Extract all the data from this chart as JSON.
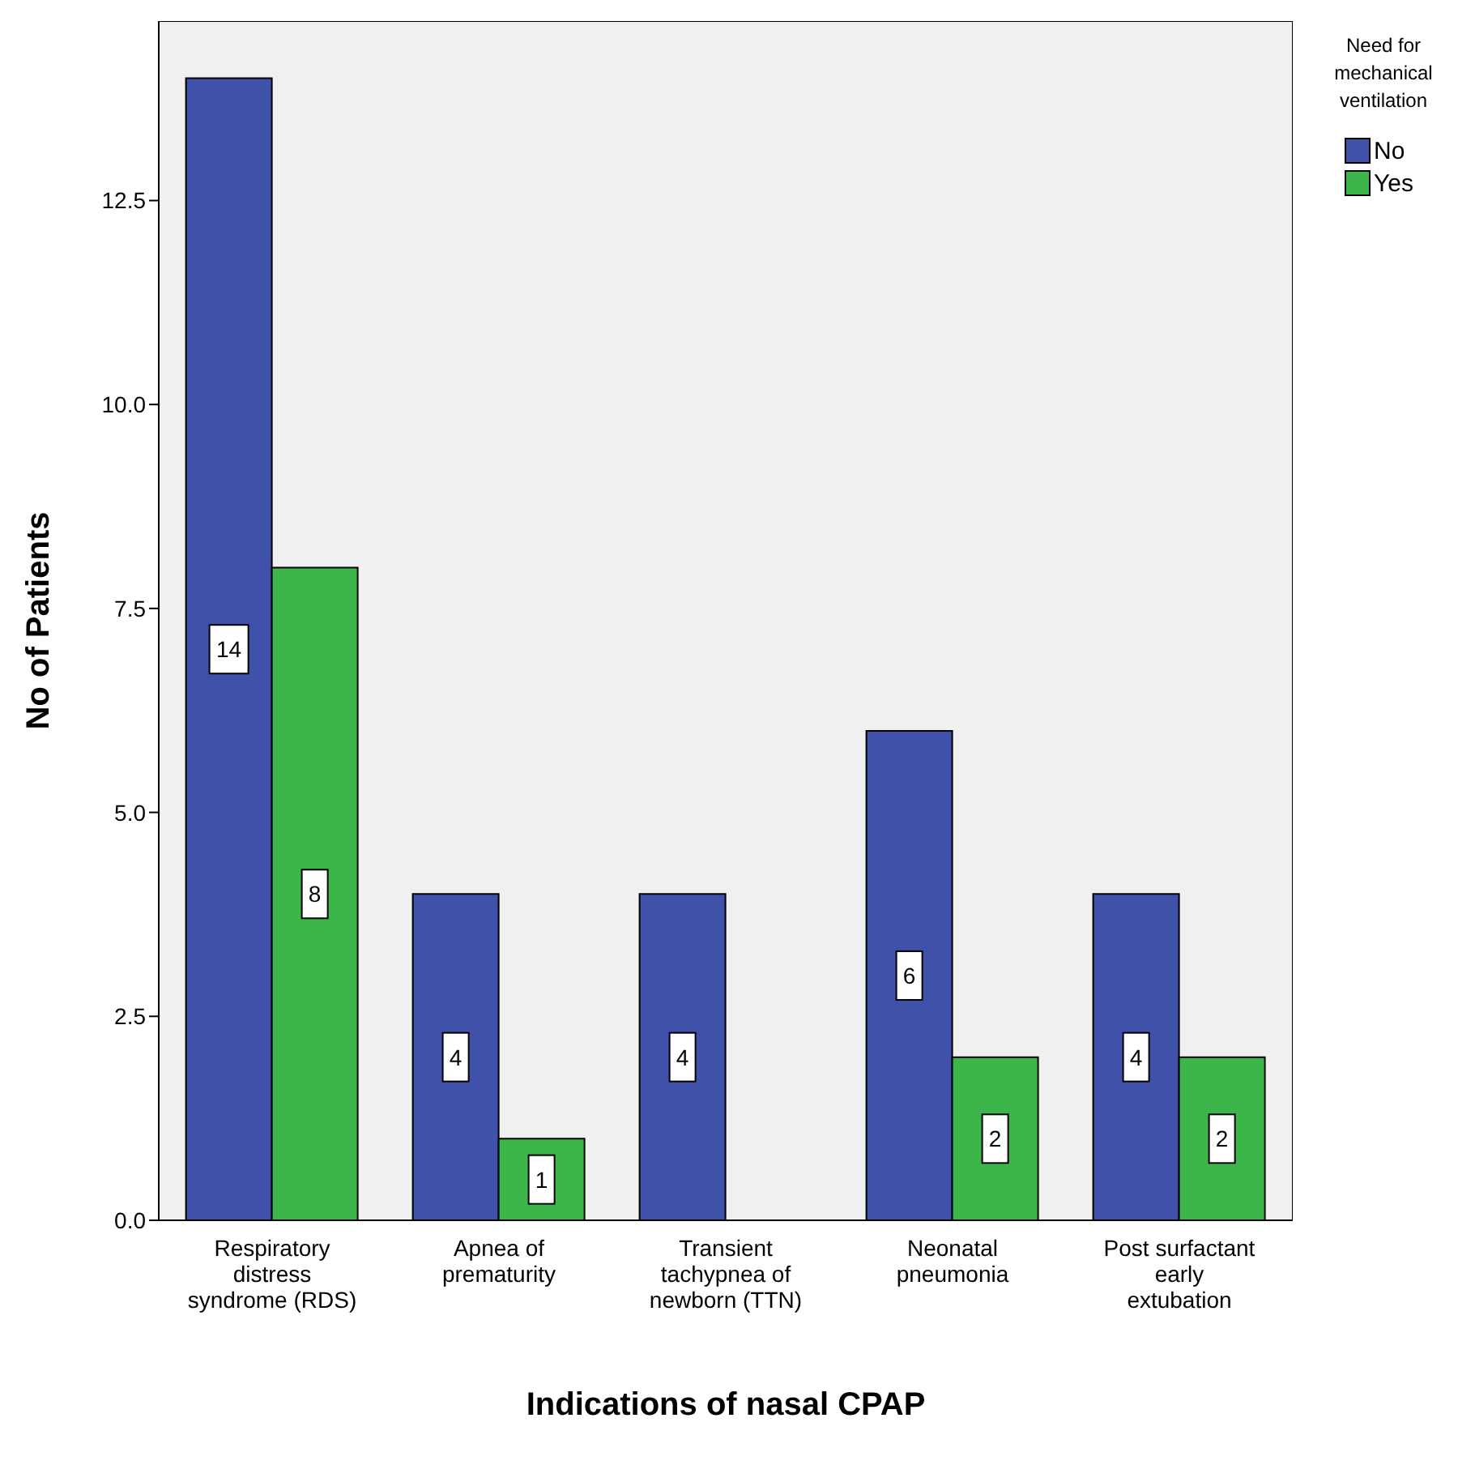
{
  "chart_data": {
    "type": "bar",
    "xlabel": "Indications of nasal CPAP",
    "ylabel": "No of Patients",
    "legend_title": "Need for mechanical ventilation",
    "categories": [
      "Respiratory distress syndrome (RDS)",
      "Apnea of prematurity",
      "Transient tachypnea of newborn (TTN)",
      "Neonatal pneumonia",
      "Post surfactant early extubation"
    ],
    "series": [
      {
        "name": "No",
        "color": "#3f51a8",
        "values": [
          14,
          4,
          4,
          6,
          4
        ]
      },
      {
        "name": "Yes",
        "color": "#3cb54a",
        "values": [
          8,
          1,
          null,
          2,
          2
        ]
      }
    ],
    "ylim": [
      0,
      14.7
    ],
    "yticks": [
      {
        "value": 0,
        "label": "0.0"
      },
      {
        "value": 2.5,
        "label": "2.5"
      },
      {
        "value": 5,
        "label": "5.0"
      },
      {
        "value": 7.5,
        "label": "7.5"
      },
      {
        "value": 10,
        "label": "10.0"
      },
      {
        "value": 12.5,
        "label": "12.5"
      }
    ],
    "grid": false,
    "legend": "top right",
    "data_labels": true
  }
}
